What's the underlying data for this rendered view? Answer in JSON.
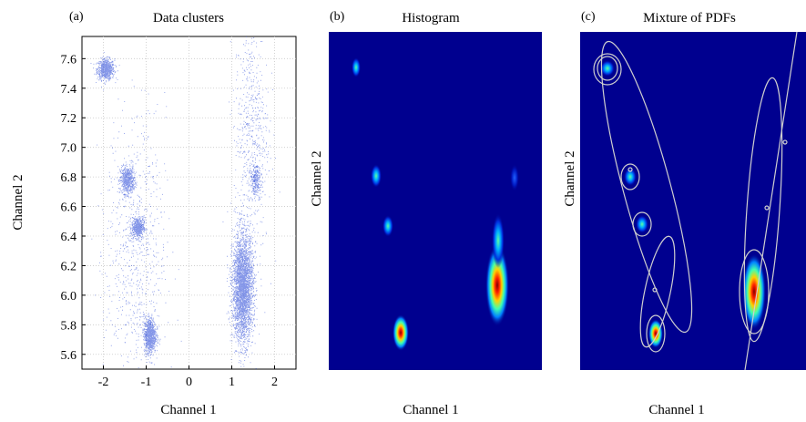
{
  "chart_data": [
    {
      "type": "scatter",
      "panel_label": "(a)",
      "title": "Data clusters",
      "xlabel": "Channel 1",
      "ylabel": "Channel 2",
      "xlim": [
        -2.5,
        2.5
      ],
      "ylim": [
        5.5,
        7.75
      ],
      "grid": true,
      "xticks": [
        -2,
        -1,
        0,
        1,
        2
      ],
      "xtick_labels": [
        "-2",
        "-1",
        "0",
        "1",
        "2"
      ],
      "yticks": [
        5.6,
        5.8,
        6.0,
        6.2,
        6.4,
        6.6,
        6.8,
        7.0,
        7.2,
        7.4,
        7.6
      ],
      "ytick_labels": [
        "5.6",
        "5.8",
        "6.0",
        "6.2",
        "6.4",
        "6.6",
        "6.8",
        "7.0",
        "7.2",
        "7.4",
        "7.6"
      ],
      "clusters": [
        {
          "cx": -1.95,
          "cy": 7.53,
          "sx": 0.1,
          "sy": 0.035,
          "n": 700
        },
        {
          "cx": -1.45,
          "cy": 6.78,
          "sx": 0.08,
          "sy": 0.045,
          "n": 600
        },
        {
          "cx": -1.2,
          "cy": 6.46,
          "sx": 0.07,
          "sy": 0.035,
          "n": 500
        },
        {
          "cx": -0.92,
          "cy": 5.73,
          "sx": 0.07,
          "sy": 0.06,
          "n": 900
        },
        {
          "cx": 1.25,
          "cy": 6.05,
          "sx": 0.12,
          "sy": 0.18,
          "n": 3200
        },
        {
          "cx": 1.55,
          "cy": 6.78,
          "sx": 0.06,
          "sy": 0.05,
          "n": 250
        },
        {
          "cx": -1.25,
          "cy": 6.3,
          "sx": 0.35,
          "sy": 0.45,
          "n": 700
        },
        {
          "cx": 1.45,
          "cy": 7.1,
          "sx": 0.2,
          "sy": 0.4,
          "n": 600
        }
      ],
      "point_color": "#1f3fd6"
    },
    {
      "type": "heatmap",
      "panel_label": "(b)",
      "title": "Histogram",
      "xlabel": "Channel 1",
      "ylabel": "Channel 2",
      "colormap": "jet",
      "background": "#00008f"
    },
    {
      "type": "heatmap",
      "panel_label": "(c)",
      "title": "Mixture of PDFs",
      "xlabel": "Channel 1",
      "ylabel": "Channel 2",
      "colormap": "jet",
      "background": "#00008f",
      "ellipse_color": "#cfcfcf"
    }
  ]
}
